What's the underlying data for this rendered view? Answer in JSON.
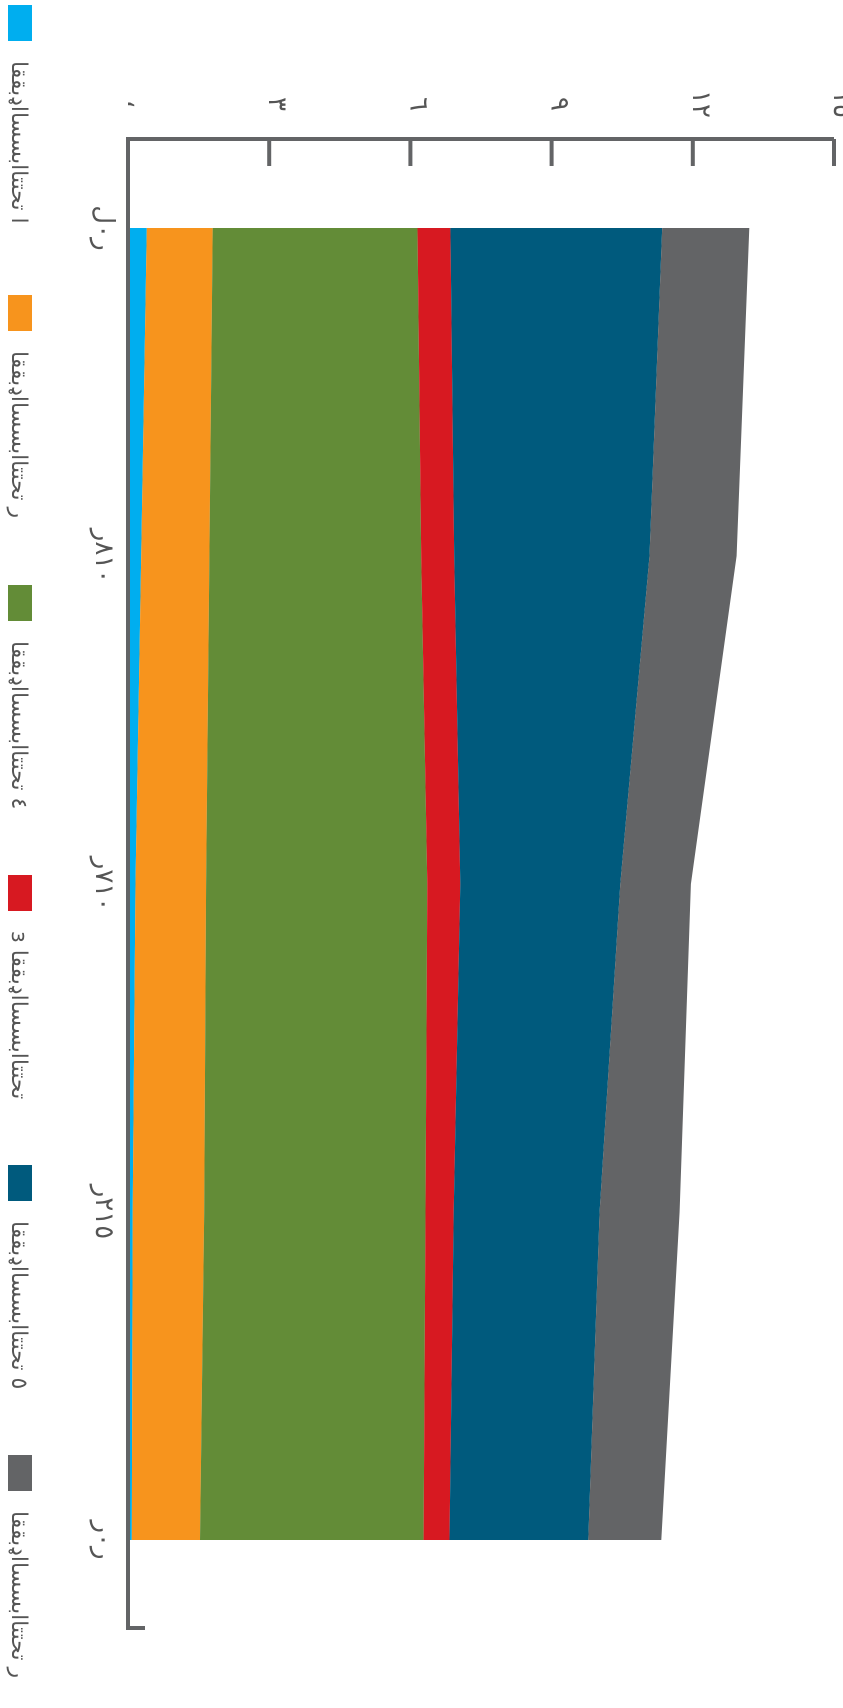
{
  "chart_data": {
    "type": "area",
    "stacked": true,
    "orientation": "rotated-90-clockwise",
    "x": [
      "ر٠ل",
      "٨١٠ر",
      "٧١٠ر",
      "٢١٥ر",
      "ر٠ر"
    ],
    "ylim": [
      0,
      15
    ],
    "yticks": [
      0,
      3,
      6,
      9,
      12,
      15
    ],
    "ytick_labels": [
      "،",
      "٣",
      "٦",
      "٩",
      "١٢",
      "١٥"
    ],
    "series": [
      {
        "name": "ا ‌تحتتاابسسااډبققا",
        "color": "#00aeef",
        "values": [
          0.4,
          0.28,
          0.16,
          0.1,
          0.08
        ]
      },
      {
        "name": "ر ‌تحتتاابسسااډبققا",
        "color": "#f7941d",
        "values": [
          1.4,
          1.45,
          1.5,
          1.52,
          1.45
        ]
      },
      {
        "name": "٤ ‌تحتتاابسسااډبققا",
        "color": "#638c37",
        "values": [
          4.35,
          4.5,
          4.7,
          4.7,
          4.75
        ]
      },
      {
        "name": "ɜ ‌تحتتاابسسااډبققا",
        "color": "#d71921",
        "values": [
          0.7,
          0.7,
          0.7,
          0.6,
          0.55
        ]
      },
      {
        "name": "٥ ‌تحتتاابسسااډبققا",
        "color": "#005a7d",
        "values": [
          4.5,
          4.15,
          3.4,
          3.1,
          2.95
        ]
      },
      {
        "name": "ر ‌تحتتاابسسااډبققا",
        "color": "#636466",
        "values": [
          1.85,
          1.85,
          1.5,
          1.7,
          1.55
        ]
      }
    ]
  }
}
